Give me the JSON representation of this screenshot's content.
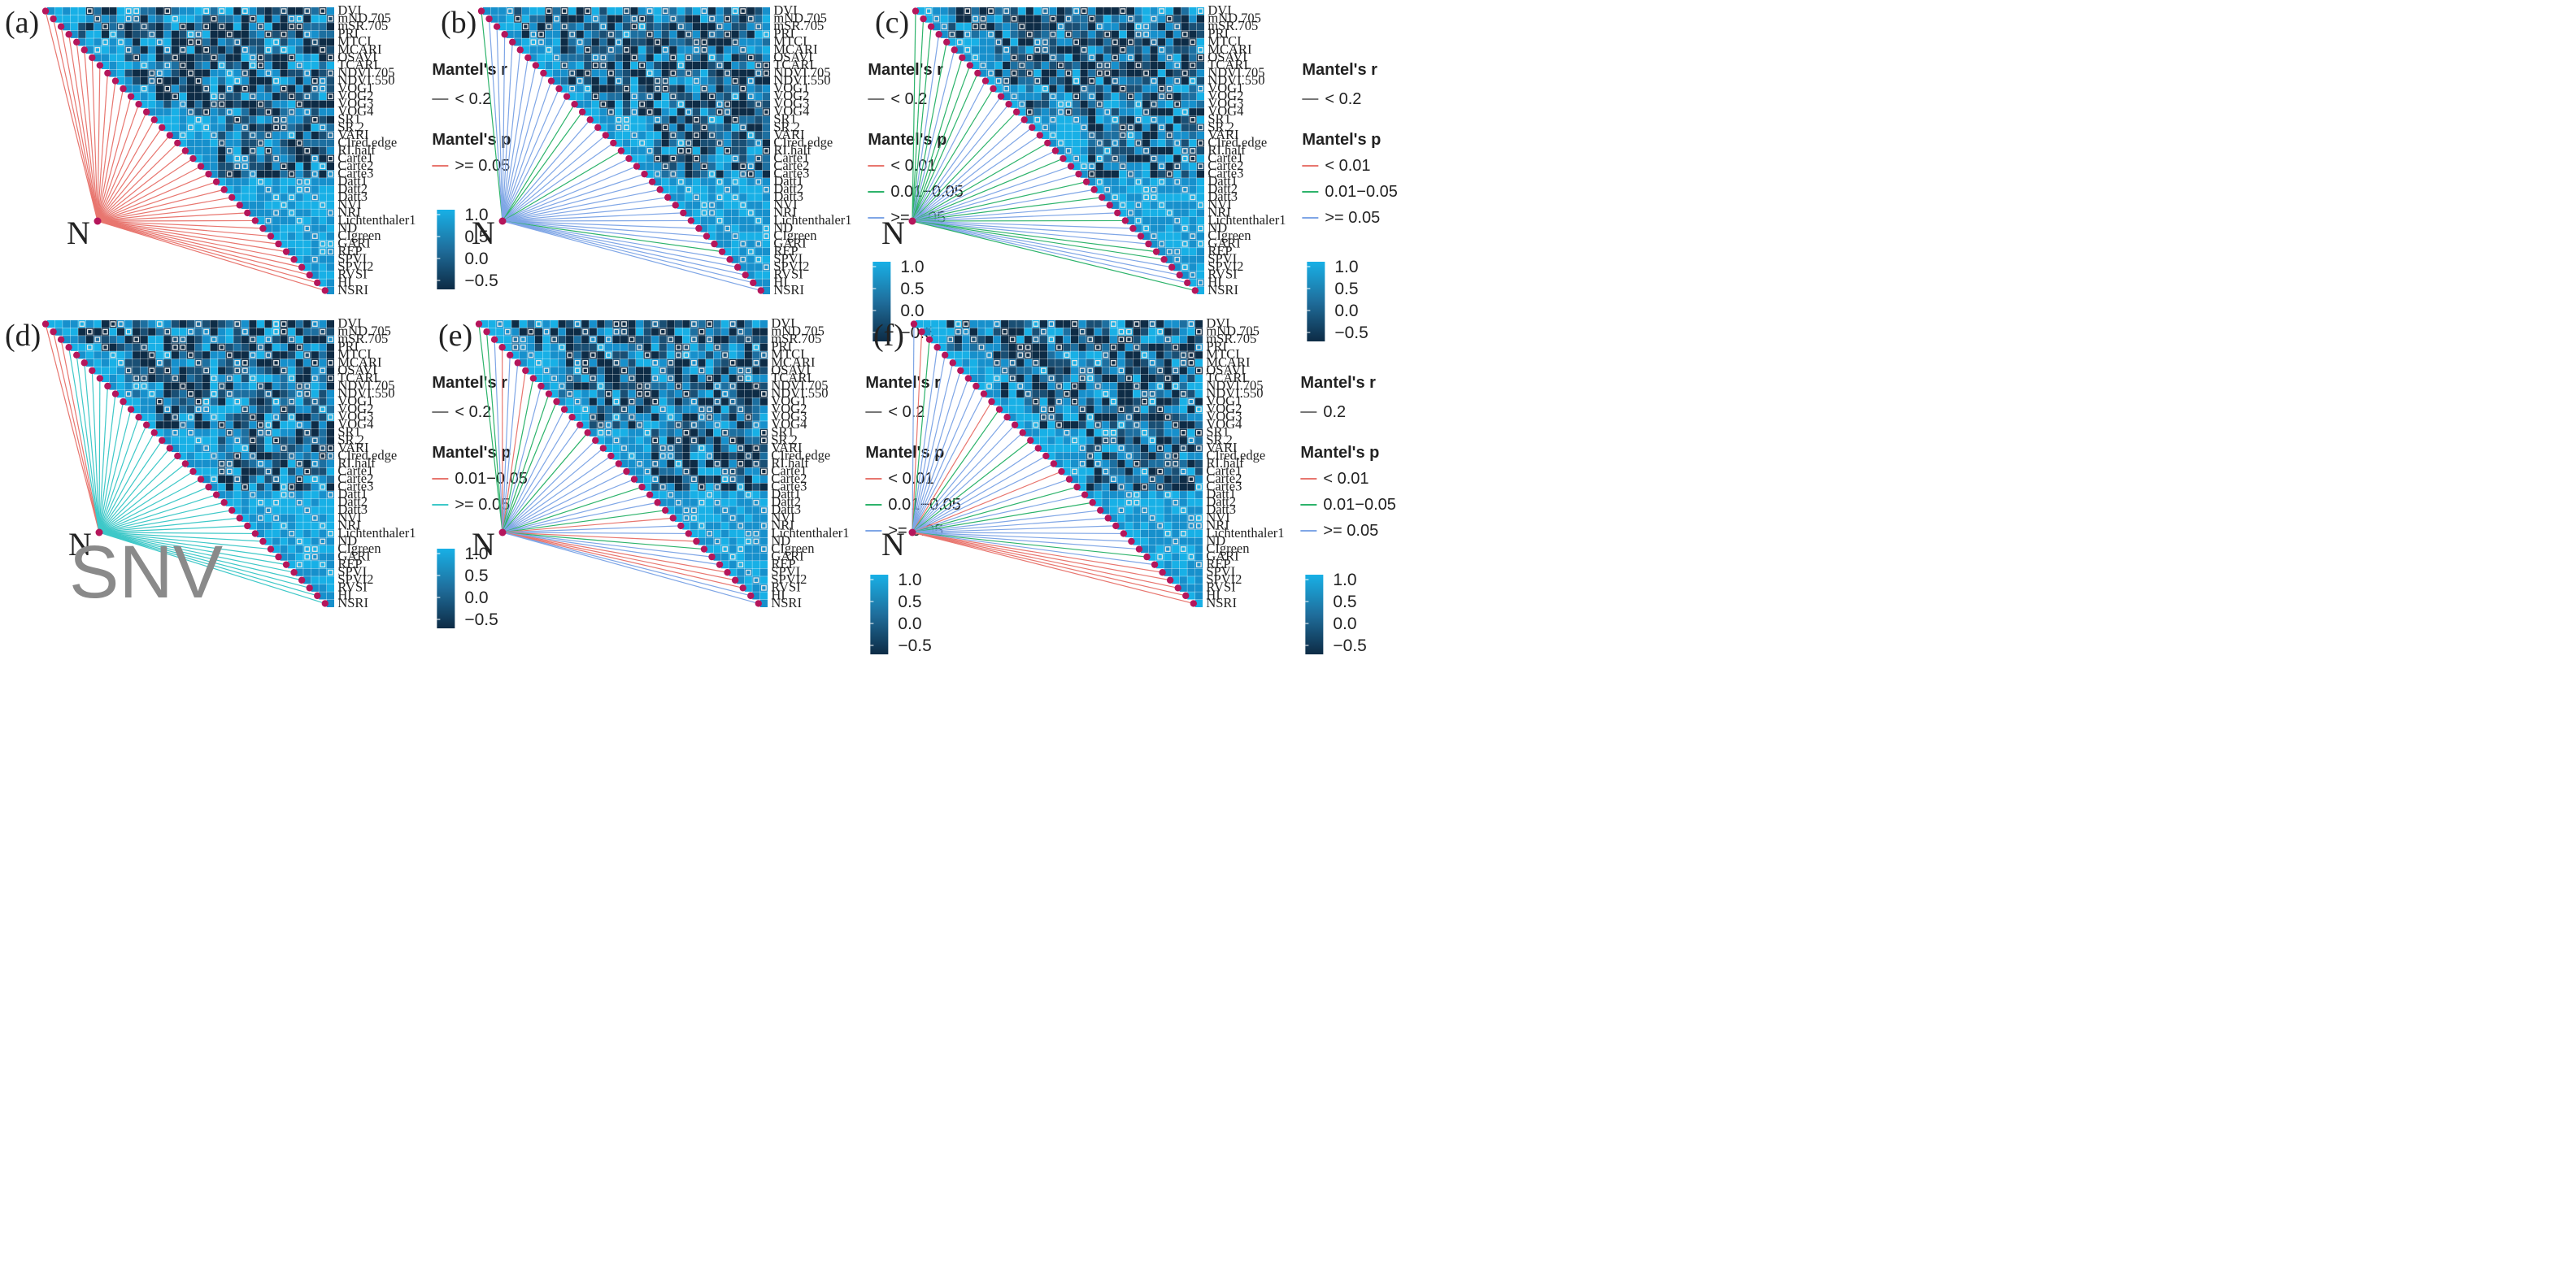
{
  "figure": {
    "label_N": "N",
    "annotation": "SNV"
  },
  "chart_data": {
    "type": "heatmap",
    "variables": [
      "DVI",
      "mND.705",
      "mSR.705",
      "PRI",
      "MTCI",
      "MCARI",
      "OSAVI",
      "TCARI",
      "NDVI.705",
      "NDVI.550",
      "VOG1",
      "VOG2",
      "VOG3",
      "VOG4",
      "SR1",
      "SR.2",
      "VARI",
      "CIred.edge",
      "RI.half",
      "Carte1",
      "Carte2",
      "Carte3",
      "Datt1",
      "Datt2",
      "Datt3",
      "NVI",
      "NRI",
      "Lichtenthaler1",
      "ND",
      "CIgreen",
      "GARI",
      "REP",
      "SPVI",
      "SPVI2",
      "RVSI",
      "HI",
      "NSRI"
    ],
    "colorbar": {
      "ticks": [
        "1.0",
        "0.5",
        "0.0",
        "−0.5"
      ],
      "low_color": "#0d2b45",
      "mid_color": "#1f6e9c",
      "high_color": "#18b0e6"
    },
    "category_colors": {
      "lt0.01": "#e8766f",
      "0.01-0.05": "#2db36b",
      "ge0.05": "#7fa6e6",
      "ge0.05_cyan": "#3ec8c8",
      "r_line": "#777777"
    },
    "panels": [
      {
        "label": "(a)",
        "legend": {
          "r_title": "Mantel's r",
          "r_items": [
            "< 0.2"
          ],
          "p_title": "Mantel's p",
          "p_items": [
            {
              "text": ">= 0.05",
              "key": "lt0.01"
            }
          ]
        },
        "link_colors_by_variable": "all red"
      },
      {
        "label": "(b)",
        "legend": {
          "r_title": "Mantel's r",
          "r_items": [
            "< 0.2"
          ],
          "p_title": "Mantel's p",
          "p_items": [
            {
              "text": "< 0.01",
              "key": "lt0.01"
            },
            {
              "text": "0.01−0.05",
              "key": "0.01-0.05"
            },
            {
              "text": ">= 0.05",
              "key": "ge0.05"
            }
          ]
        },
        "link_colors_by_variable": "mostly blue, some green"
      },
      {
        "label": "(c)",
        "legend": {
          "r_title": "Mantel's r",
          "r_items": [
            "< 0.2"
          ],
          "p_title": "Mantel's p",
          "p_items": [
            {
              "text": "< 0.01",
              "key": "lt0.01"
            },
            {
              "text": "0.01−0.05",
              "key": "0.01-0.05"
            },
            {
              "text": ">= 0.05",
              "key": "ge0.05"
            }
          ]
        },
        "link_colors_by_variable": "mixed green and blue"
      },
      {
        "label": "(d)",
        "legend": {
          "r_title": "Mantel's r",
          "r_items": [
            "< 0.2"
          ],
          "p_title": "Mantel's p",
          "p_items": [
            {
              "text": "0.01−0.05",
              "key": "lt0.01"
            },
            {
              "text": ">= 0.05",
              "key": "ge0.05_cyan"
            }
          ]
        },
        "link_colors_by_variable": "mostly cyan, few red"
      },
      {
        "label": "(e)",
        "legend": {
          "r_title": "Mantel's r",
          "r_items": [
            "< 0.2"
          ],
          "p_title": "Mantel's p",
          "p_items": [
            {
              "text": "< 0.01",
              "key": "lt0.01"
            },
            {
              "text": "0.01−0.05",
              "key": "0.01-0.05"
            },
            {
              "text": ">= 0.05",
              "key": "ge0.05"
            }
          ]
        },
        "link_colors_by_variable": "mostly blue, some green and red"
      },
      {
        "label": "(f)",
        "legend": {
          "r_title": "Mantel's r",
          "r_items": [
            "0.2"
          ],
          "p_title": "Mantel's p",
          "p_items": [
            {
              "text": "< 0.01",
              "key": "lt0.01"
            },
            {
              "text": "0.01−0.05",
              "key": "0.01-0.05"
            },
            {
              "text": ">= 0.05",
              "key": "ge0.05"
            }
          ]
        },
        "link_colors_by_variable": "mostly blue, some red and green"
      }
    ]
  }
}
